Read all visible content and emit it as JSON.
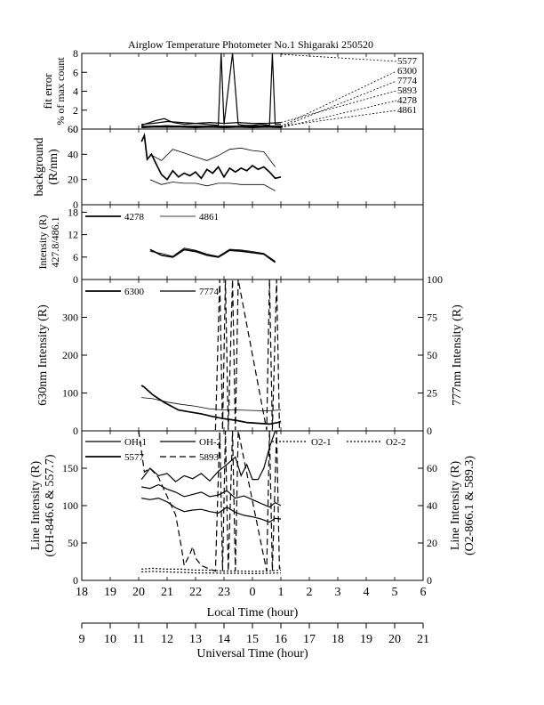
{
  "title": "Airglow Temperature Photometer No.1  Shigaraki  250520",
  "chart_data": [
    {
      "type": "line",
      "panel": "fit-error",
      "ylabel_lines": [
        "fit error",
        "% of max count"
      ],
      "ylim": [
        0,
        8
      ],
      "yticks": [
        "0",
        "2",
        "4",
        "6",
        "8"
      ],
      "legend": [
        "5577",
        "6300",
        "7774",
        "5893",
        "4278",
        "4861"
      ],
      "series": [
        {
          "name": "5577",
          "style": "solid",
          "x": [
            11.1,
            11.3,
            11.6,
            11.9,
            12.2,
            12.6,
            13.0,
            13.4,
            13.8,
            13.9,
            14.0,
            14.3,
            14.5,
            14.7,
            15.0,
            15.3,
            15.6,
            15.7,
            15.8,
            16.0
          ],
          "y": [
            0.4,
            0.6,
            0.9,
            1.1,
            0.7,
            0.5,
            0.6,
            0.5,
            0.4,
            8.0,
            0.5,
            8.0,
            0.5,
            0.4,
            0.4,
            0.5,
            0.4,
            8.0,
            0.5,
            0.5
          ]
        },
        {
          "name": "6300",
          "style": "solid",
          "x": [
            11.1,
            11.5,
            12.0,
            12.5,
            13.0,
            13.5,
            14.0,
            14.5,
            15.0,
            15.5,
            16.0
          ],
          "y": [
            0.3,
            0.3,
            0.35,
            0.3,
            0.3,
            0.3,
            0.3,
            0.3,
            0.3,
            0.35,
            0.3
          ]
        },
        {
          "name": "7774",
          "style": "solid",
          "x": [
            11.1,
            11.5,
            12.0,
            12.5,
            13.0,
            13.5,
            14.0,
            14.5,
            15.0,
            15.5,
            16.0
          ],
          "y": [
            0.2,
            0.25,
            0.3,
            0.25,
            0.2,
            0.25,
            0.2,
            0.25,
            0.2,
            0.25,
            0.2
          ]
        },
        {
          "name": "5893",
          "style": "solid",
          "x": [
            11.1,
            11.5,
            12.0,
            12.5,
            13.0,
            13.5,
            14.0,
            14.5,
            15.0,
            15.5,
            16.0
          ],
          "y": [
            0.5,
            0.6,
            0.8,
            0.7,
            0.6,
            0.7,
            0.6,
            0.7,
            0.6,
            0.6,
            0.7
          ]
        },
        {
          "name": "4278",
          "style": "solid",
          "x": [
            11.1,
            11.5,
            12.0,
            12.5,
            13.0,
            13.5,
            14.0,
            14.5,
            15.0,
            15.5,
            16.0
          ],
          "y": [
            0.15,
            0.2,
            0.2,
            0.2,
            0.15,
            0.2,
            0.15,
            0.2,
            0.15,
            0.2,
            0.15
          ]
        },
        {
          "name": "4861",
          "style": "solid",
          "x": [
            11.1,
            11.5,
            12.0,
            12.5,
            13.0,
            13.5,
            14.0,
            14.5,
            15.0,
            15.5,
            16.0
          ],
          "y": [
            0.25,
            0.3,
            0.35,
            0.3,
            0.3,
            0.3,
            0.3,
            0.3,
            0.3,
            0.3,
            0.3
          ]
        }
      ]
    },
    {
      "type": "line",
      "panel": "background",
      "ylabel_lines": [
        "background",
        "(R/nm)"
      ],
      "ylim": [
        0,
        60
      ],
      "yticks": [
        "0",
        "20",
        "40",
        "60"
      ],
      "series": [
        {
          "name": "",
          "style": "solid-thin",
          "x": [
            11.4,
            11.8,
            12.2,
            12.6,
            13.0,
            13.4,
            13.8,
            14.2,
            14.6,
            15.0,
            15.4,
            15.8
          ],
          "y": [
            40,
            35,
            44,
            41,
            38,
            35,
            39,
            44,
            45,
            43,
            42,
            30
          ]
        },
        {
          "name": "",
          "style": "solid-bold",
          "x": [
            11.1,
            11.2,
            11.3,
            11.45,
            11.6,
            11.8,
            12.0,
            12.2,
            12.4,
            12.6,
            12.8,
            13.0,
            13.2,
            13.4,
            13.6,
            13.8,
            14.0,
            14.2,
            14.4,
            14.6,
            14.8,
            15.0,
            15.2,
            15.4,
            15.6,
            15.8,
            16.0
          ],
          "y": [
            50,
            55,
            36,
            40,
            33,
            24,
            20,
            27,
            22,
            25,
            23,
            26,
            21,
            28,
            25,
            30,
            22,
            29,
            26,
            29,
            27,
            31,
            28,
            30,
            26,
            21,
            22
          ]
        },
        {
          "name": "",
          "style": "solid-thin",
          "x": [
            11.4,
            11.8,
            12.2,
            12.6,
            13.0,
            13.4,
            13.8,
            14.2,
            14.6,
            15.0,
            15.4,
            15.8
          ],
          "y": [
            20,
            16,
            18,
            17,
            17,
            15,
            17,
            17,
            16,
            16,
            16,
            11
          ]
        }
      ]
    },
    {
      "type": "line",
      "panel": "427.8/486.1",
      "ylabel_lines": [
        "Intensity (R)",
        "427.8/486.1"
      ],
      "ylim": [
        0,
        20
      ],
      "yticks": [
        "0",
        "6",
        "12",
        "18"
      ],
      "legend": [
        "4278",
        "4861"
      ],
      "series": [
        {
          "name": "4278",
          "style": "solid-bold",
          "x": [
            11.4,
            11.8,
            12.2,
            12.6,
            13.0,
            13.4,
            13.8,
            14.2,
            14.6,
            15.0,
            15.4,
            15.8
          ],
          "y": [
            8,
            6.5,
            6,
            8,
            7.5,
            6.5,
            6,
            7.8,
            7.6,
            7.2,
            6.8,
            4.6
          ]
        },
        {
          "name": "4861",
          "style": "solid-thin",
          "x": [
            11.4,
            11.8,
            12.2,
            12.6,
            13.0,
            13.4,
            13.8,
            14.2,
            14.6,
            15.0,
            15.4,
            15.8
          ],
          "y": [
            7.5,
            7,
            6.2,
            8.4,
            7.8,
            6.8,
            6.2,
            8.1,
            7.9,
            7.5,
            7.0,
            4.9
          ]
        }
      ]
    },
    {
      "type": "line",
      "panel": "630/777",
      "ylabel_left": "630nm Intensity (R)",
      "ylabel_right": "777nm Intensity (R)",
      "ylim_left": [
        0,
        400
      ],
      "ylim_right": [
        0,
        100
      ],
      "yticks_left": [
        "0",
        "100",
        "200",
        "300"
      ],
      "yticks_right": [
        "0",
        "25",
        "50",
        "75",
        "100"
      ],
      "legend": [
        "6300",
        "7774"
      ],
      "series": [
        {
          "name": "6300",
          "style": "solid-bold",
          "axis": "left",
          "x": [
            11.1,
            11.2,
            11.5,
            11.9,
            12.4,
            12.8,
            13.2,
            13.6,
            14.0,
            14.4,
            14.8,
            15.2,
            15.6,
            15.9,
            16.0
          ],
          "y": [
            120,
            115,
            95,
            75,
            55,
            50,
            45,
            38,
            32,
            28,
            22,
            20,
            18,
            22,
            25
          ]
        },
        {
          "name": "",
          "style": "solid-thin",
          "axis": "left",
          "x": [
            11.1,
            11.5,
            12.0,
            12.5,
            13.0,
            13.5,
            14.0,
            14.5,
            15.0,
            15.5,
            16.0
          ],
          "y": [
            88,
            85,
            76,
            70,
            65,
            58,
            55,
            55,
            54,
            53,
            55
          ]
        },
        {
          "name": "7774",
          "style": "dashed",
          "axis": "right",
          "x": [
            13.7,
            13.85,
            13.95,
            14.05,
            14.15,
            14.3,
            14.4,
            14.5,
            15.5,
            15.6,
            15.7,
            15.85,
            15.95,
            16.0
          ],
          "y": [
            0.5,
            100,
            0.5,
            100,
            0.5,
            100,
            0.5,
            100,
            0.5,
            100,
            0.5,
            100,
            2,
            5
          ]
        }
      ]
    },
    {
      "type": "line",
      "panel": "line-intensity",
      "ylabel_left_lines": [
        "Line Intensity (R)",
        "(OH-846.6 & 557.7)"
      ],
      "ylabel_right_lines": [
        "Line Intensity (R)",
        "(O2-866.1 & 589.3)"
      ],
      "ylim_left": [
        0,
        200
      ],
      "ylim_right": [
        0,
        80
      ],
      "yticks_left": [
        "0",
        "50",
        "100",
        "150"
      ],
      "yticks_right": [
        "0",
        "20",
        "40",
        "60"
      ],
      "legend": [
        "OH-1",
        "OH-2",
        "O2-1",
        "O2-2",
        "5577",
        "5893"
      ],
      "series": [
        {
          "name": "OH-1",
          "style": "solid",
          "axis": "left",
          "x": [
            11.1,
            11.4,
            11.7,
            12.0,
            12.3,
            12.6,
            12.9,
            13.2,
            13.5,
            13.8,
            14.1,
            14.4,
            14.7,
            15.0,
            15.3,
            15.6,
            15.8,
            16.0
          ],
          "y": [
            110,
            108,
            110,
            105,
            97,
            92,
            94,
            95,
            92,
            90,
            98,
            91,
            87,
            85,
            82,
            78,
            83,
            82
          ]
        },
        {
          "name": "OH-2",
          "style": "solid",
          "axis": "left",
          "x": [
            11.1,
            11.4,
            11.7,
            12.0,
            12.3,
            12.6,
            12.9,
            13.2,
            13.5,
            13.8,
            14.1,
            14.4,
            14.7,
            15.0,
            15.3,
            15.6,
            15.8,
            16.0
          ],
          "y": [
            125,
            123,
            128,
            122,
            118,
            112,
            115,
            118,
            112,
            114,
            120,
            110,
            113,
            108,
            103,
            98,
            104,
            100
          ]
        },
        {
          "name": "5577",
          "style": "solid",
          "axis": "left",
          "x": [
            11.1,
            11.4,
            11.7,
            12.0,
            12.3,
            12.6,
            12.9,
            13.2,
            13.5,
            13.8,
            14.1,
            14.4,
            14.6,
            14.8,
            15.0,
            15.2,
            15.4,
            15.6,
            15.8,
            16.0
          ],
          "y": [
            135,
            150,
            140,
            143,
            132,
            140,
            136,
            143,
            133,
            146,
            155,
            165,
            140,
            155,
            135,
            135,
            150,
            178,
            200,
            200
          ]
        },
        {
          "name": "5893",
          "style": "dashed",
          "axis": "right",
          "x": [
            11.0,
            11.2,
            11.4,
            11.7,
            12.0,
            12.3,
            12.5,
            12.6,
            12.8,
            12.9,
            13.0,
            13.2,
            13.5,
            13.7,
            13.85,
            13.95,
            14.05,
            14.15,
            14.3,
            14.4,
            14.5,
            15.5,
            15.6,
            15.7,
            15.85,
            15.95,
            16.0
          ],
          "y": [
            80,
            58,
            60,
            55,
            45,
            35,
            18,
            8,
            14,
            18,
            12,
            8,
            6,
            5,
            80,
            5,
            80,
            5,
            80,
            5,
            80,
            5,
            80,
            5,
            80,
            6,
            8
          ]
        },
        {
          "name": "O2-1",
          "style": "dotted",
          "axis": "right",
          "x": [
            11.1,
            11.5,
            12.0,
            12.5,
            13.0,
            13.5,
            14.0,
            14.5,
            15.0,
            15.5,
            16.0
          ],
          "y": [
            6,
            6.5,
            6,
            6,
            5.5,
            5.5,
            5,
            5,
            4.8,
            5,
            5.5
          ]
        },
        {
          "name": "O2-2",
          "style": "dotted",
          "axis": "right",
          "x": [
            11.1,
            11.5,
            12.0,
            12.5,
            13.0,
            13.5,
            14.0,
            14.5,
            15.0,
            15.5,
            16.0
          ],
          "y": [
            4.5,
            4.8,
            4.5,
            4.3,
            4.0,
            4.0,
            3.8,
            3.8,
            3.6,
            3.8,
            4.0
          ]
        }
      ]
    }
  ],
  "x_axes": {
    "local_time": {
      "label": "Local Time (hour)",
      "ticks": [
        "18",
        "19",
        "20",
        "21",
        "22",
        "23",
        "0",
        "1",
        "2",
        "3",
        "4",
        "5",
        "6"
      ]
    },
    "universal_time": {
      "label": "Universal Time (hour)",
      "ticks": [
        "9",
        "10",
        "11",
        "12",
        "13",
        "14",
        "15",
        "16",
        "17",
        "18",
        "19",
        "20",
        "21"
      ]
    }
  }
}
